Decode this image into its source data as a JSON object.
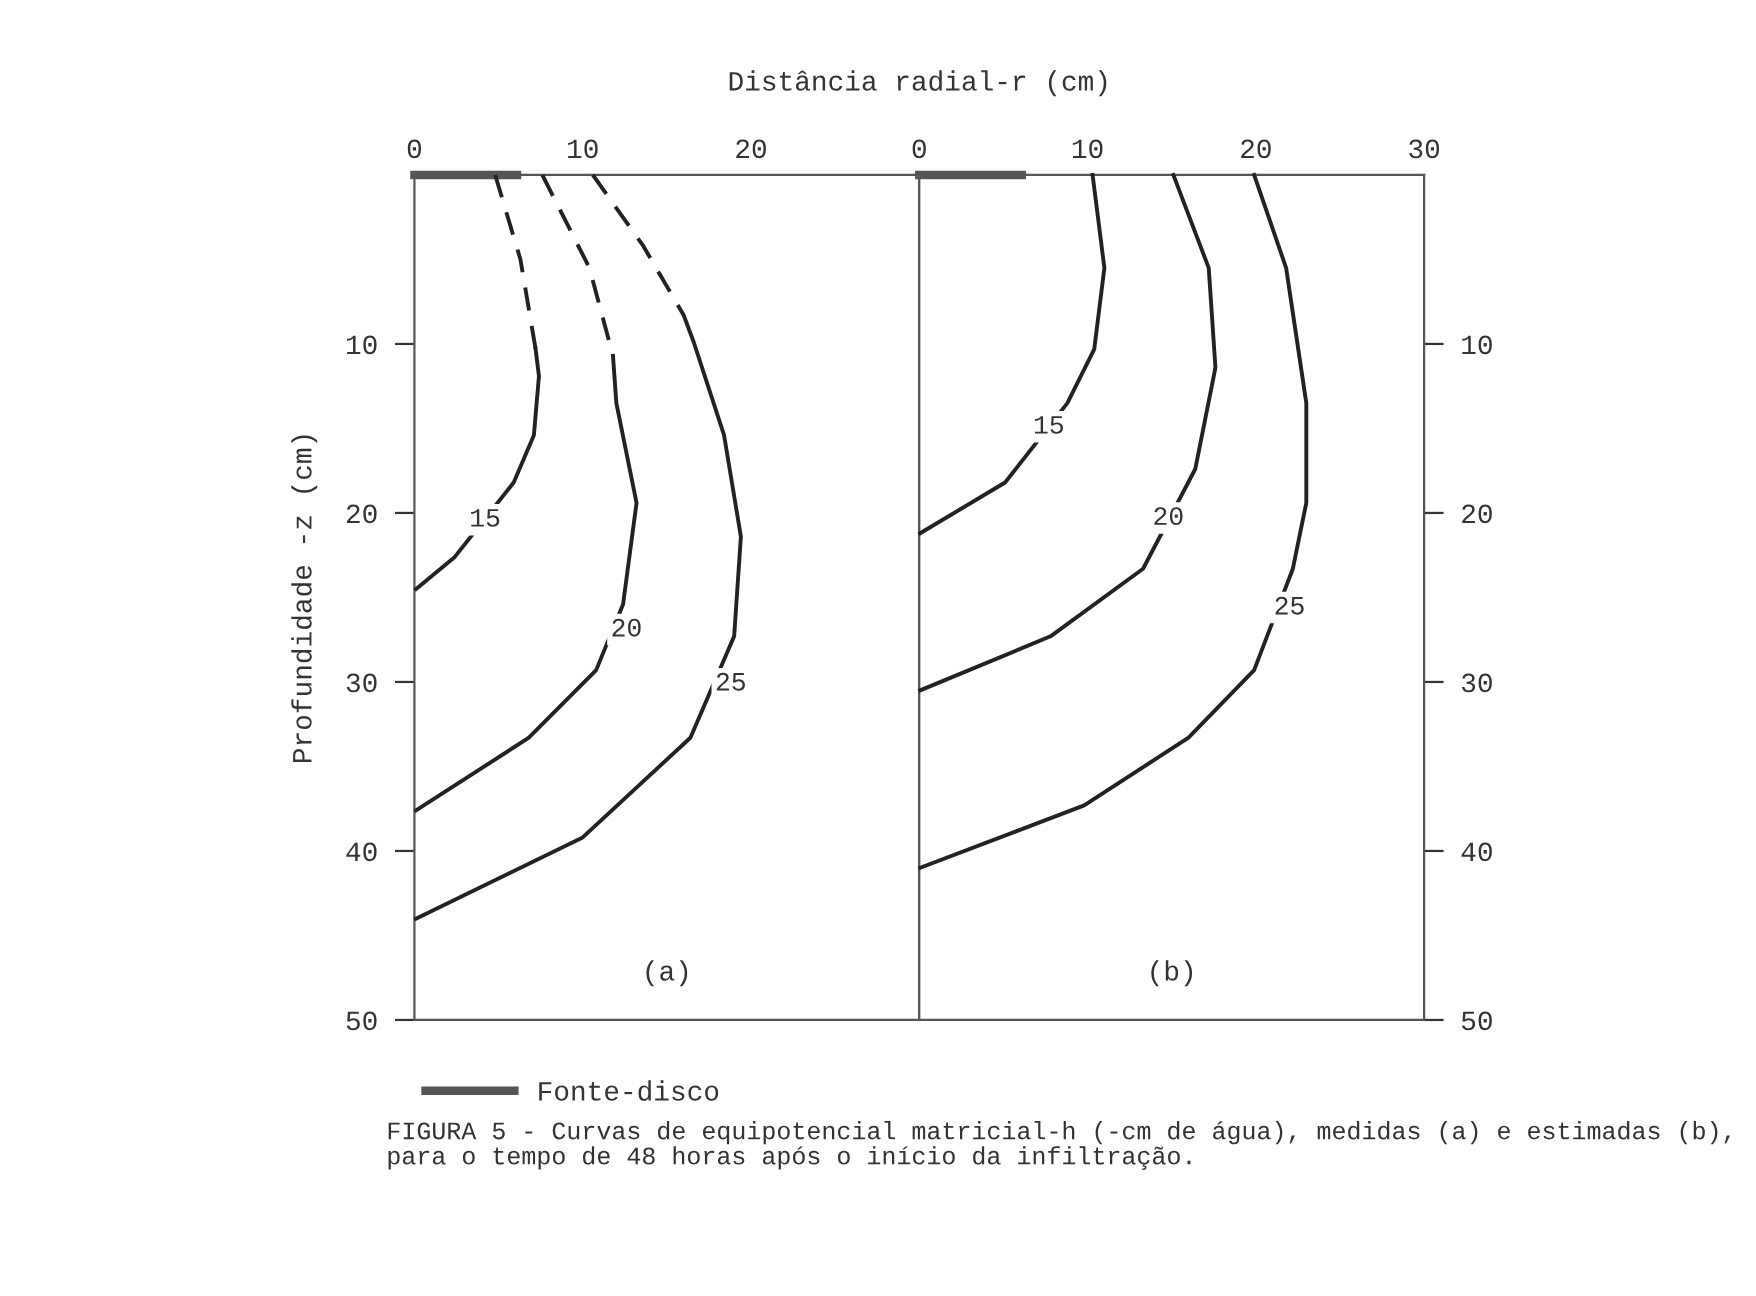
{
  "chart_data": [
    {
      "type": "line",
      "xlabel": "Distância radial-r (cm)",
      "ylabel": "Profundidade -z (cm)",
      "xlim": [
        0,
        30
      ],
      "xticks": [
        0,
        10,
        20
      ],
      "ylim": [
        50,
        0
      ],
      "yticks": [
        10,
        20,
        30,
        40,
        50
      ],
      "grid": false,
      "legend": "bottom",
      "marker": "none",
      "series": [
        {
          "name": "Fonte-disco",
          "color": "#555555",
          "x": [
            0,
            6.1
          ],
          "values": [
            0,
            0
          ]
        },
        {
          "color": "#222222",
          "line_style": "dashed",
          "x": [
            4.8,
            6.3,
            7.2
          ],
          "values": [
            0,
            5,
            10.3
          ]
        },
        {
          "color": "#222222",
          "line_style": "solid",
          "x": [
            7.2,
            7.4,
            7.1,
            5.9,
            2.4,
            0.1
          ],
          "values": [
            10.3,
            11.9,
            15.4,
            18.2,
            22.6,
            24.5
          ]
        },
        {
          "color": "#222222",
          "line_style": "dashed",
          "x": [
            7.6,
            10.4,
            11.8
          ],
          "values": [
            0,
            5.5,
            10.7
          ]
        },
        {
          "color": "#222222",
          "line_style": "solid",
          "x": [
            11.8,
            12.0,
            13.2,
            12.4,
            10.8,
            6.8,
            0.1
          ],
          "values": [
            10.7,
            13.5,
            19.4,
            25.4,
            29.3,
            33.3,
            37.6
          ]
        },
        {
          "color": "#222222",
          "line_style": "dashed",
          "x": [
            10.6,
            13.6,
            16.0
          ],
          "values": [
            0,
            4.2,
            8.3
          ]
        },
        {
          "color": "#222222",
          "line_style": "solid",
          "x": [
            16.0,
            16.6,
            18.4,
            19.4,
            19.0,
            16.4,
            10.0,
            0.1
          ],
          "values": [
            8.3,
            9.9,
            15.4,
            21.4,
            27.3,
            33.3,
            39.2,
            44.0
          ]
        }
      ],
      "annotations": [
        {
          "text": "15",
          "x": 4.2,
          "y": 20.4
        },
        {
          "text": "20",
          "x": 12.6,
          "y": 26.9
        },
        {
          "text": "25",
          "x": 18.8,
          "y": 30.1
        },
        "(a)",
        "FIGURA 5 - Curvas de equipotencial matricial-h (-cm de água), medidas (a) e estimadas (b), para o tempo de 48 horas após o início da infiltração."
      ]
    },
    {
      "type": "line",
      "xlim": [
        0,
        30
      ],
      "xticks": [
        0,
        10,
        20,
        30
      ],
      "ylim": [
        50,
        0
      ],
      "yticks": [
        10,
        20,
        30,
        40,
        50
      ],
      "grid": false,
      "marker": "none",
      "series": [
        {
          "color": "#555555",
          "x": [
            0,
            6.1
          ],
          "values": [
            0,
            0
          ]
        },
        {
          "color": "#222222",
          "line_style": "solid",
          "x": [
            10.3,
            11.0,
            10.4,
            8.8,
            5.1,
            0.05
          ],
          "values": [
            0,
            5.5,
            10.3,
            13.5,
            18.2,
            21.2
          ]
        },
        {
          "color": "#222222",
          "line_style": "solid",
          "x": [
            15.1,
            17.2,
            17.6,
            16.4,
            13.3,
            7.8,
            0.05
          ],
          "values": [
            0,
            5.5,
            11.4,
            17.4,
            23.3,
            27.3,
            30.5
          ]
        },
        {
          "color": "#222222",
          "line_style": "solid",
          "x": [
            19.9,
            21.8,
            23.0,
            23.0,
            22.2,
            19.9,
            16.0,
            9.8,
            0.05
          ],
          "values": [
            0,
            5.5,
            13.5,
            19.4,
            23.3,
            29.3,
            33.3,
            37.3,
            41.0
          ]
        }
      ],
      "annotations": [
        {
          "text": "15",
          "x": 7.7,
          "y": 14.9
        },
        {
          "text": "20",
          "x": 14.8,
          "y": 20.3
        },
        {
          "text": "25",
          "x": 22.0,
          "y": 25.6
        },
        "(b)"
      ]
    }
  ]
}
